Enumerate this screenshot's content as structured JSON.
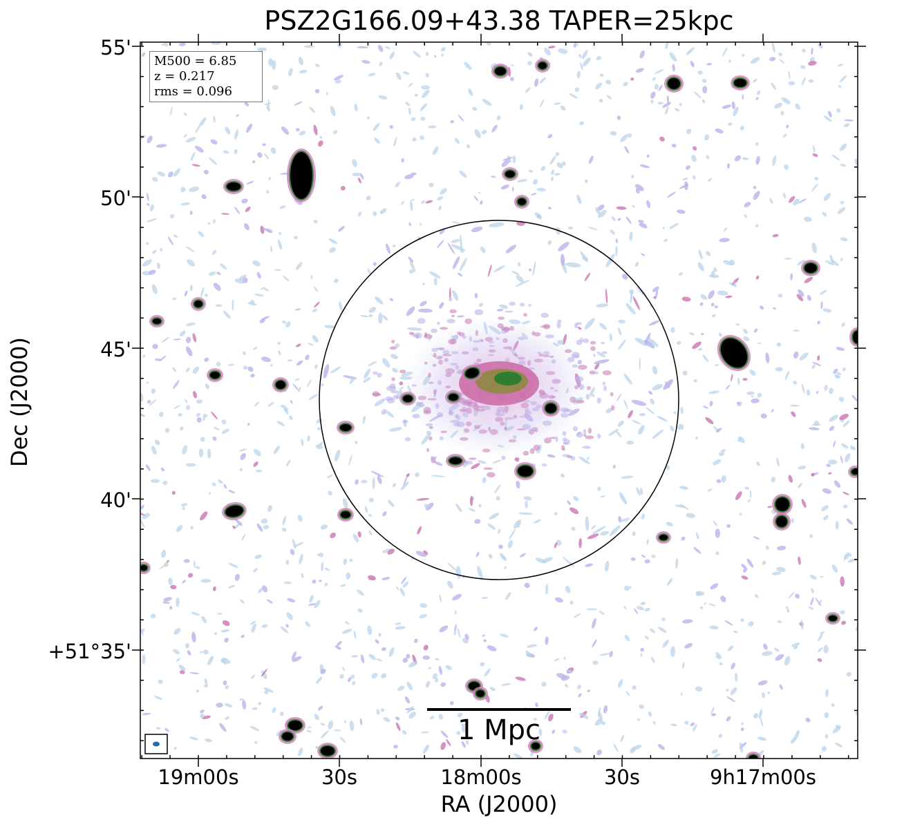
{
  "figure": {
    "title": "PSZ2G166.09+43.38 TAPER=25kpc",
    "xlabel": "RA (J2000)",
    "ylabel": "Dec (J2000)",
    "yticks": [
      "55'",
      "50'",
      "45'",
      "40'",
      "+51°35'"
    ],
    "xticks": [
      "19m00s",
      "30s",
      "18m00s",
      "30s",
      "9h17m00s"
    ],
    "info": {
      "m500": "M500 = 6.85",
      "z": "z = 0.217",
      "rms": "rms = 0.096"
    },
    "scale_bar_label": "1 Mpc"
  },
  "colors": {
    "faint": "#bcd4ea",
    "lilac": "#b9b4ea",
    "pink": "#cc7fb8",
    "green": "#2f7d2f",
    "source": "#000000",
    "beam": "#2b6cb0"
  }
}
